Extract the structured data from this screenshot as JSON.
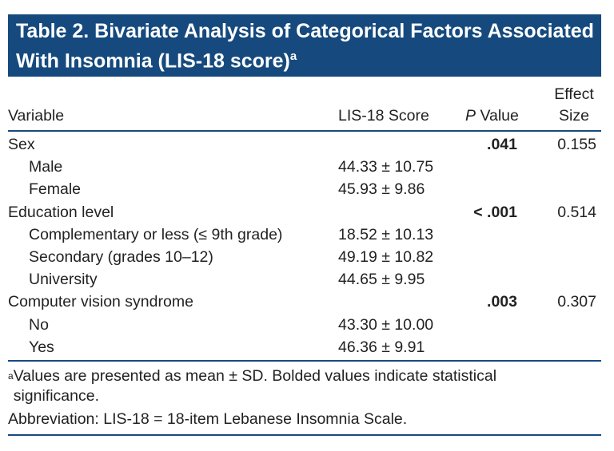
{
  "header": {
    "title": "Table 2. Bivariate Analysis of Categorical Factors Associated With Insomnia (LIS-18 score)",
    "title_note": "a"
  },
  "table": {
    "columns": {
      "variable": "Variable",
      "score": "LIS-18 Score",
      "p_italic": "P",
      "p_rest": "Value",
      "effect": [
        "Effect",
        "Size"
      ]
    },
    "rows": [
      {
        "label": "Sex",
        "p": ".041",
        "effect": "0.155"
      },
      {
        "label": "Male",
        "score": "44.33 ± 10.75"
      },
      {
        "label": "Female",
        "score": "45.93 ± 9.86"
      },
      {
        "label": "Education level",
        "p": "< .001",
        "effect": "0.514"
      },
      {
        "label": "Complementary or less (≤ 9th grade)",
        "score": "18.52 ± 10.13"
      },
      {
        "label": "Secondary (grades 10–12)",
        "score": "49.19 ± 10.82"
      },
      {
        "label": "University",
        "score": "44.65 ± 9.95"
      },
      {
        "label": "Computer vision syndrome",
        "p": ".003",
        "effect": "0.307"
      },
      {
        "label": "No",
        "score": "43.30 ± 10.00"
      },
      {
        "label": "Yes",
        "score": "46.36 ± 9.91"
      }
    ]
  },
  "footnotes": {
    "mark": "a",
    "note": "Values are presented as mean ± SD. Bolded values indicate statistical significance.",
    "abbreviation": "Abbreviation: LIS-18 = 18-item Lebanese Insomnia Scale."
  }
}
